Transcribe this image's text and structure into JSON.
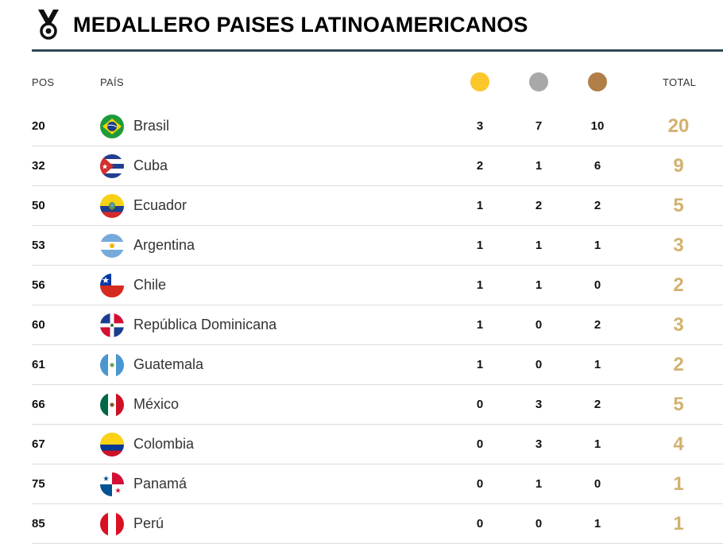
{
  "header": {
    "title": "MEDALLERO PAISES LATINOAMERICANOS",
    "icon": "medal-icon"
  },
  "columns": {
    "pos": "POS",
    "pais": "PAÍS",
    "gold_color": "#fcc72a",
    "silver_color": "#a8a8a8",
    "bronze_color": "#b07f48",
    "total": "TOTAL"
  },
  "accent_total_color": "#d3b16e",
  "rows": [
    {
      "pos": "20",
      "country": "Brasil",
      "flag": "brazil-flag-icon",
      "gold": "3",
      "silver": "7",
      "bronze": "10",
      "total": "20"
    },
    {
      "pos": "32",
      "country": "Cuba",
      "flag": "cuba-flag-icon",
      "gold": "2",
      "silver": "1",
      "bronze": "6",
      "total": "9"
    },
    {
      "pos": "50",
      "country": "Ecuador",
      "flag": "ecuador-flag-icon",
      "gold": "1",
      "silver": "2",
      "bronze": "2",
      "total": "5"
    },
    {
      "pos": "53",
      "country": "Argentina",
      "flag": "argentina-flag-icon",
      "gold": "1",
      "silver": "1",
      "bronze": "1",
      "total": "3"
    },
    {
      "pos": "56",
      "country": "Chile",
      "flag": "chile-flag-icon",
      "gold": "1",
      "silver": "1",
      "bronze": "0",
      "total": "2"
    },
    {
      "pos": "60",
      "country": "República Dominicana",
      "flag": "dominican-republic-flag-icon",
      "gold": "1",
      "silver": "0",
      "bronze": "2",
      "total": "3"
    },
    {
      "pos": "61",
      "country": "Guatemala",
      "flag": "guatemala-flag-icon",
      "gold": "1",
      "silver": "0",
      "bronze": "1",
      "total": "2"
    },
    {
      "pos": "66",
      "country": "México",
      "flag": "mexico-flag-icon",
      "gold": "0",
      "silver": "3",
      "bronze": "2",
      "total": "5"
    },
    {
      "pos": "67",
      "country": "Colombia",
      "flag": "colombia-flag-icon",
      "gold": "0",
      "silver": "3",
      "bronze": "1",
      "total": "4"
    },
    {
      "pos": "75",
      "country": "Panamá",
      "flag": "panama-flag-icon",
      "gold": "0",
      "silver": "1",
      "bronze": "0",
      "total": "1"
    },
    {
      "pos": "85",
      "country": "Perú",
      "flag": "peru-flag-icon",
      "gold": "0",
      "silver": "0",
      "bronze": "1",
      "total": "1"
    }
  ]
}
